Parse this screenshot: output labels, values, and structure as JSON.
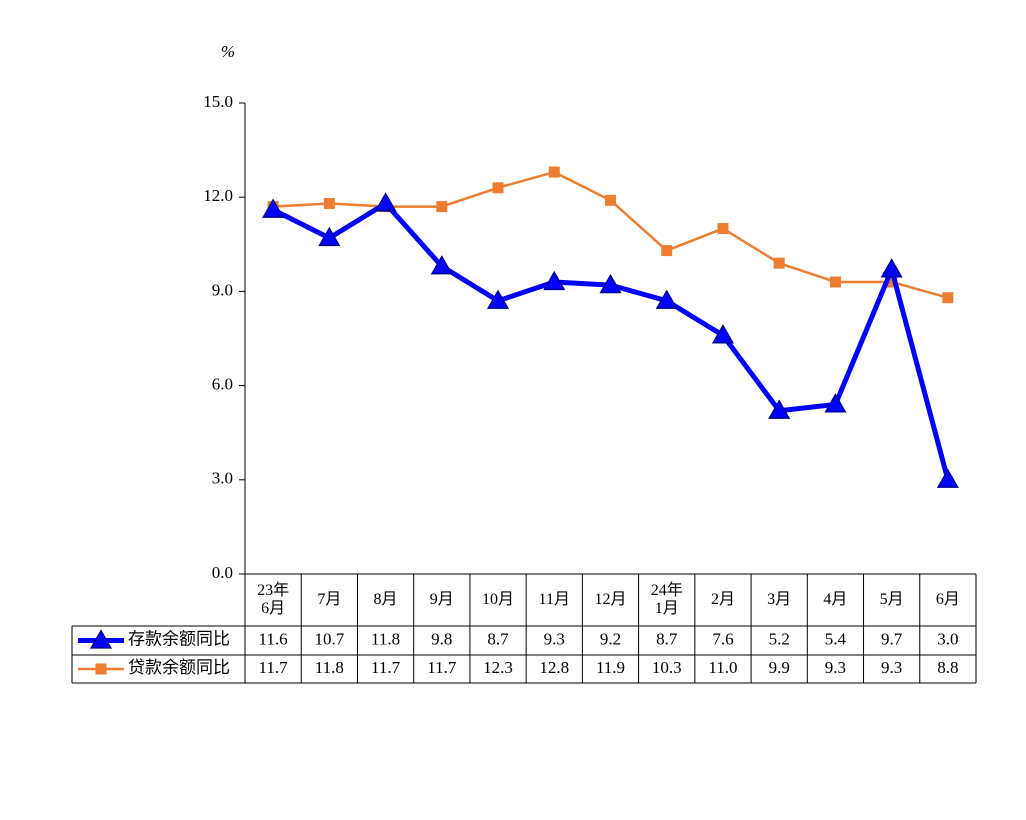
{
  "chart_data": {
    "type": "line",
    "y_unit": "%",
    "categories": [
      "23年\n6月",
      "7月",
      "8月",
      "9月",
      "10月",
      "11月",
      "12月",
      "24年\n1月",
      "2月",
      "3月",
      "4月",
      "5月",
      "6月"
    ],
    "series": [
      {
        "name": "存款余额同比",
        "color": "#0000ff",
        "marker": "triangle",
        "values": [
          11.6,
          10.7,
          11.8,
          9.8,
          8.7,
          9.3,
          9.2,
          8.7,
          7.6,
          5.2,
          5.4,
          9.7,
          3.0
        ],
        "value_labels": [
          "11.6",
          "10.7",
          "11.8",
          "9.8",
          "8.7",
          "9.3",
          "9.2",
          "8.7",
          "7.6",
          "5.2",
          "5.4",
          "9.7",
          "3.0"
        ]
      },
      {
        "name": "贷款余额同比",
        "color": "#ed7d31",
        "marker": "square",
        "values": [
          11.7,
          11.8,
          11.7,
          11.7,
          12.3,
          12.8,
          11.9,
          10.3,
          11.0,
          9.9,
          9.3,
          9.3,
          8.8
        ],
        "value_labels": [
          "11.7",
          "11.8",
          "11.7",
          "11.7",
          "12.3",
          "12.8",
          "11.9",
          "10.3",
          "11.0",
          "9.9",
          "9.3",
          "9.3",
          "8.8"
        ]
      }
    ],
    "ylim": [
      0,
      15
    ],
    "yticks": [
      {
        "value": 0,
        "label": "0.0"
      },
      {
        "value": 3,
        "label": "3.0"
      },
      {
        "value": 6,
        "label": "6.0"
      },
      {
        "value": 9,
        "label": "9.0"
      },
      {
        "value": 12,
        "label": "12.0"
      },
      {
        "value": 15,
        "label": "15.0"
      }
    ],
    "grid": false
  }
}
